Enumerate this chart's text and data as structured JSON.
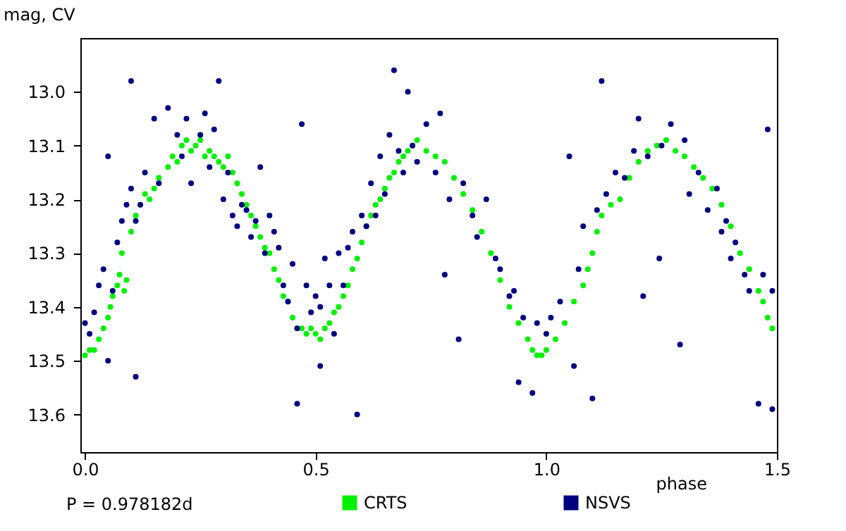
{
  "chart_data": {
    "type": "scatter",
    "xlabel": "phase",
    "ylabel": "mag, CV",
    "annotations": [
      "P = 0.978182d"
    ],
    "xlim": [
      -0.01,
      1.5
    ],
    "ylim": [
      13.67,
      12.9
    ],
    "xticks": [
      {
        "value": 0,
        "label": "0.0"
      },
      0.5,
      {
        "value": 1,
        "label": "1.0"
      },
      1.5
    ],
    "yticks": [
      {
        "value": 13,
        "label": "13.0"
      },
      13.1,
      13.2,
      13.3,
      13.4,
      13.5,
      13.6
    ],
    "grid": false,
    "legend": "bottom",
    "marker": "circle",
    "series": [
      {
        "name": "CRTS",
        "color": "#00f000",
        "x": [
          0.0,
          0.01,
          0.02,
          0.03,
          0.04,
          0.05,
          0.055,
          0.06,
          0.07,
          0.075,
          0.08,
          0.085,
          0.09,
          0.1,
          0.11,
          0.12,
          0.13,
          0.14,
          0.15,
          0.16,
          0.18,
          0.19,
          0.2,
          0.21,
          0.22,
          0.23,
          0.24,
          0.25,
          0.26,
          0.27,
          0.28,
          0.29,
          0.3,
          0.31,
          0.32,
          0.33,
          0.34,
          0.35,
          0.36,
          0.37,
          0.38,
          0.39,
          0.4,
          0.41,
          0.42,
          0.43,
          0.44,
          0.45,
          0.46,
          0.47,
          0.48,
          0.49,
          0.5,
          0.51,
          0.52,
          0.53,
          0.54,
          0.55,
          0.56,
          0.57,
          0.58,
          0.59,
          0.6,
          0.61,
          0.62,
          0.63,
          0.64,
          0.65,
          0.66,
          0.67,
          0.68,
          0.69,
          0.7,
          0.71,
          0.72,
          0.74,
          0.76,
          0.78,
          0.8,
          0.82,
          0.84,
          0.86,
          0.88,
          0.9,
          0.92,
          0.94,
          0.96,
          0.97,
          0.98,
          0.99,
          1.0,
          1.02,
          1.04,
          1.06,
          1.08,
          1.09,
          1.1,
          1.11,
          1.12,
          1.14,
          1.16,
          1.18,
          1.2,
          1.22,
          1.24,
          1.26,
          1.28,
          1.3,
          1.32,
          1.34,
          1.36,
          1.38,
          1.4,
          1.42,
          1.44,
          1.46,
          1.47,
          1.48,
          1.49
        ],
        "values": [
          13.49,
          13.48,
          13.48,
          13.46,
          13.44,
          13.42,
          13.4,
          13.38,
          13.36,
          13.34,
          13.3,
          13.37,
          13.35,
          13.26,
          13.23,
          13.21,
          13.19,
          13.2,
          13.18,
          13.16,
          13.14,
          13.12,
          13.13,
          13.1,
          13.09,
          13.11,
          13.1,
          13.09,
          13.12,
          13.11,
          13.12,
          13.13,
          13.14,
          13.12,
          13.15,
          13.17,
          13.19,
          13.21,
          13.23,
          13.25,
          13.27,
          13.29,
          13.3,
          13.33,
          13.35,
          13.38,
          13.39,
          13.42,
          13.44,
          13.44,
          13.45,
          13.44,
          13.45,
          13.46,
          13.44,
          13.43,
          13.41,
          13.4,
          13.38,
          13.36,
          13.33,
          13.31,
          13.28,
          13.25,
          13.23,
          13.21,
          13.2,
          13.18,
          13.16,
          13.15,
          13.13,
          13.12,
          13.11,
          13.1,
          13.09,
          13.11,
          13.12,
          13.13,
          13.16,
          13.19,
          13.22,
          13.26,
          13.3,
          13.35,
          13.4,
          13.43,
          13.46,
          13.48,
          13.49,
          13.49,
          13.48,
          13.46,
          13.43,
          13.39,
          13.36,
          13.33,
          13.3,
          13.26,
          13.23,
          13.21,
          13.2,
          13.16,
          13.13,
          13.11,
          13.1,
          13.09,
          13.11,
          13.12,
          13.14,
          13.16,
          13.18,
          13.21,
          13.25,
          13.3,
          13.33,
          13.37,
          13.39,
          13.42,
          13.44
        ]
      },
      {
        "name": "NSVS",
        "color": "#000080",
        "x": [
          0.0,
          0.01,
          0.02,
          0.03,
          0.04,
          0.05,
          0.05,
          0.06,
          0.07,
          0.08,
          0.09,
          0.1,
          0.1,
          0.11,
          0.11,
          0.12,
          0.13,
          0.15,
          0.16,
          0.18,
          0.2,
          0.21,
          0.22,
          0.23,
          0.25,
          0.26,
          0.27,
          0.28,
          0.29,
          0.3,
          0.31,
          0.32,
          0.33,
          0.34,
          0.35,
          0.36,
          0.37,
          0.38,
          0.39,
          0.4,
          0.41,
          0.42,
          0.43,
          0.44,
          0.45,
          0.46,
          0.46,
          0.47,
          0.48,
          0.49,
          0.5,
          0.51,
          0.51,
          0.52,
          0.53,
          0.54,
          0.55,
          0.56,
          0.57,
          0.58,
          0.59,
          0.6,
          0.61,
          0.62,
          0.63,
          0.64,
          0.65,
          0.66,
          0.67,
          0.68,
          0.69,
          0.7,
          0.71,
          0.72,
          0.74,
          0.76,
          0.77,
          0.78,
          0.79,
          0.81,
          0.82,
          0.84,
          0.85,
          0.87,
          0.89,
          0.9,
          0.92,
          0.93,
          0.94,
          0.95,
          0.97,
          0.98,
          1.0,
          1.01,
          1.03,
          1.05,
          1.06,
          1.07,
          1.08,
          1.1,
          1.11,
          1.12,
          1.13,
          1.15,
          1.17,
          1.19,
          1.2,
          1.21,
          1.22,
          1.245,
          1.25,
          1.27,
          1.29,
          1.3,
          1.31,
          1.33,
          1.35,
          1.37,
          1.38,
          1.39,
          1.4,
          1.41,
          1.43,
          1.44,
          1.46,
          1.47,
          1.48,
          1.49,
          1.49
        ],
        "values": [
          13.43,
          13.45,
          13.41,
          13.36,
          13.33,
          13.12,
          13.5,
          13.37,
          13.28,
          13.24,
          13.21,
          12.98,
          13.18,
          13.53,
          13.24,
          13.21,
          13.15,
          13.05,
          13.17,
          13.03,
          13.08,
          13.12,
          13.05,
          13.17,
          13.08,
          13.04,
          13.14,
          13.07,
          12.98,
          13.2,
          13.15,
          13.23,
          13.25,
          13.21,
          13.22,
          13.27,
          13.24,
          13.14,
          13.3,
          13.23,
          13.26,
          13.29,
          13.36,
          13.39,
          13.32,
          13.58,
          13.44,
          13.06,
          13.36,
          13.41,
          13.38,
          13.51,
          13.4,
          13.31,
          13.36,
          13.45,
          13.3,
          13.36,
          13.29,
          13.26,
          13.6,
          13.23,
          13.25,
          13.17,
          13.23,
          13.12,
          13.19,
          13.08,
          12.96,
          13.11,
          13.15,
          13.0,
          13.1,
          13.13,
          13.06,
          13.15,
          13.04,
          13.34,
          13.2,
          13.46,
          13.17,
          13.23,
          13.27,
          13.2,
          13.31,
          13.33,
          13.38,
          13.37,
          13.54,
          13.42,
          13.56,
          13.43,
          13.45,
          13.42,
          13.39,
          13.12,
          13.51,
          13.33,
          13.25,
          13.57,
          13.22,
          12.98,
          13.19,
          13.15,
          13.16,
          13.11,
          13.05,
          13.38,
          13.12,
          13.31,
          13.1,
          13.06,
          13.47,
          13.09,
          13.19,
          13.15,
          13.22,
          13.18,
          13.26,
          13.24,
          13.31,
          13.28,
          13.34,
          13.37,
          13.58,
          13.34,
          13.07,
          13.59,
          13.37
        ]
      }
    ]
  }
}
